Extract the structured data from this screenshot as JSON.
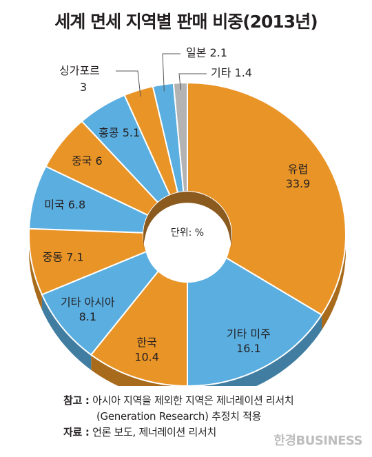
{
  "chart_data": {
    "type": "pie",
    "title": "세계 면세 지역별 판매 비중(2013년)",
    "unit_label": "단위: %",
    "slices": [
      {
        "name": "유럽",
        "value": 33.9,
        "color": "#e99427"
      },
      {
        "name": "기타 미주",
        "value": 16.1,
        "color": "#5aaee0"
      },
      {
        "name": "한국",
        "value": 10.4,
        "color": "#e99427"
      },
      {
        "name": "기타 아시아",
        "value": 8.1,
        "color": "#5aaee0"
      },
      {
        "name": "중동",
        "value": 7.1,
        "color": "#e99427"
      },
      {
        "name": "미국",
        "value": 6.8,
        "color": "#5aaee0"
      },
      {
        "name": "중국",
        "value": 6,
        "color": "#e99427"
      },
      {
        "name": "홍콩",
        "value": 5.1,
        "color": "#5aaee0"
      },
      {
        "name": "싱가포르",
        "value": 3,
        "color": "#e99427"
      },
      {
        "name": "일본",
        "value": 2.1,
        "color": "#5aaee0"
      },
      {
        "name": "기타",
        "value": 1.4,
        "color": "#b3b3b3"
      }
    ]
  },
  "notes": {
    "ref_label": "참고 :",
    "ref_text_1": "아시아 지역을 제외한 지역은 제너레이션 리서치",
    "ref_text_2": "(Generation Research) 추정치 적용",
    "source_label": "자료 :",
    "source_text": "언론 보도, 제너레이션 리서치"
  },
  "brand": "한경BUSINESS"
}
